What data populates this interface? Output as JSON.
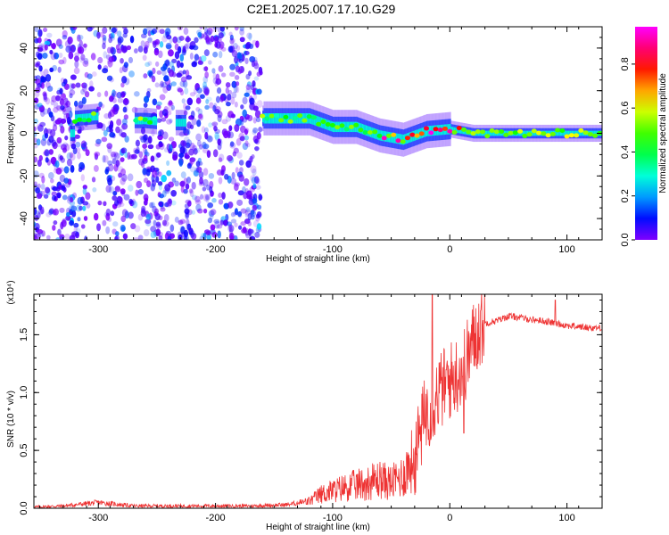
{
  "title": "C2E1.2025.007.17.10.G29",
  "chart_data": [
    {
      "type": "heatmap",
      "xlabel": "Height of straight line (km)",
      "ylabel": "Frequency (Hz)",
      "xlim": [
        -355,
        130
      ],
      "ylim": [
        -50,
        50
      ],
      "xticks": [
        -300,
        -200,
        -100,
        0,
        100
      ],
      "yticks": [
        -40,
        -20,
        0,
        20,
        40
      ],
      "colorbar": {
        "label": "Normalized spectral amplitude",
        "range": [
          0.0,
          0.97
        ],
        "ticks": [
          0.0,
          0.2,
          0.4,
          0.6,
          0.8
        ],
        "tick_labels": [
          "0.0",
          "0.2",
          "0.4",
          "0.6",
          "0.8"
        ]
      },
      "ridge": {
        "x": [
          -320,
          -300,
          -280,
          -260,
          -240,
          -220,
          -200,
          -180,
          -160,
          -140,
          -120,
          -100,
          -80,
          -60,
          -40,
          -20,
          0,
          20,
          60,
          100,
          130
        ],
        "frequency": [
          7,
          8,
          6,
          6,
          5,
          5,
          6,
          7,
          7,
          7,
          7,
          3,
          3,
          -1,
          -3,
          1,
          2,
          0,
          0,
          0,
          0
        ]
      },
      "noise_region_x": [
        -355,
        -160
      ]
    },
    {
      "type": "line",
      "xlabel": "Height of straight line (km)",
      "ylabel": "SNR (10 * v/v)",
      "scale_note": "(x10⁴)",
      "xlim": [
        -355,
        130
      ],
      "ylim": [
        0.0,
        1.85
      ],
      "xticks": [
        -300,
        -200,
        -100,
        0,
        100
      ],
      "yticks": [
        0.0,
        0.5,
        1.0,
        1.5
      ],
      "ytick_labels": [
        "0.0",
        "0.5",
        "1.0",
        "1.5"
      ],
      "series": [
        {
          "color": "#ee3333",
          "x": [
            -355,
            -330,
            -300,
            -270,
            -240,
            -200,
            -170,
            -140,
            -120,
            -110,
            -100,
            -90,
            -80,
            -70,
            -60,
            -50,
            -40,
            -30,
            -25,
            -20,
            -15,
            -10,
            -5,
            0,
            5,
            10,
            15,
            20,
            25,
            30,
            40,
            50,
            60,
            70,
            80,
            90,
            100,
            110,
            120,
            130
          ],
          "values": [
            0.01,
            0.02,
            0.05,
            0.02,
            0.02,
            0.02,
            0.02,
            0.03,
            0.06,
            0.12,
            0.15,
            0.18,
            0.2,
            0.22,
            0.25,
            0.22,
            0.28,
            0.45,
            0.65,
            0.85,
            0.9,
            1.0,
            1.05,
            1.1,
            1.15,
            1.2,
            1.3,
            1.45,
            1.55,
            1.6,
            1.62,
            1.66,
            1.65,
            1.63,
            1.62,
            1.6,
            1.58,
            1.57,
            1.56,
            1.56
          ]
        }
      ],
      "spikes": [
        {
          "x": -15,
          "value": 1.85
        },
        {
          "x": 90,
          "value": 1.8
        },
        {
          "x": 12,
          "value": 0.65
        }
      ]
    }
  ]
}
